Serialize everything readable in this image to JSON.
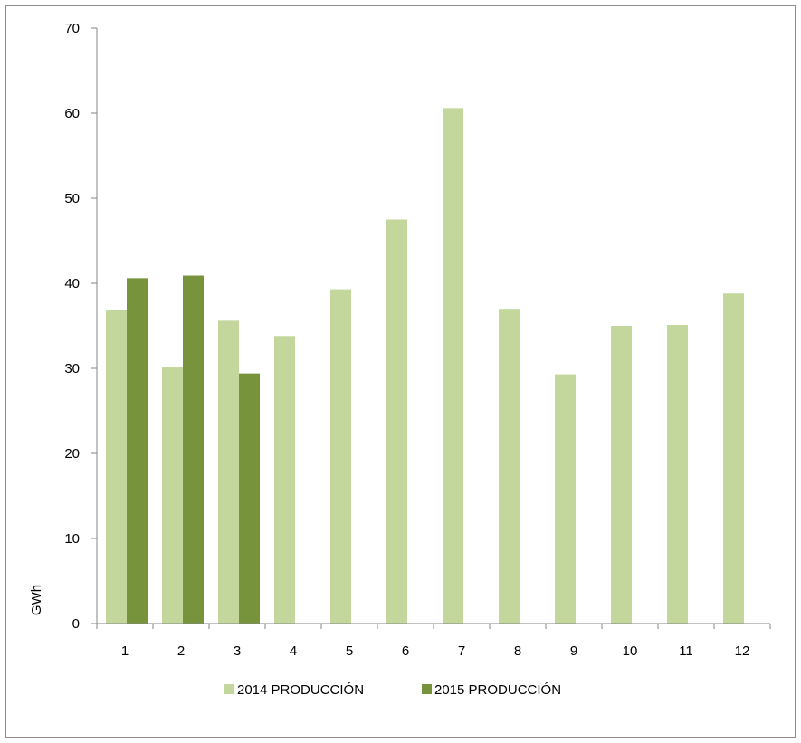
{
  "chart_data": {
    "type": "bar",
    "ylabel": "GWh",
    "xlabel": "",
    "ylim": [
      0,
      70
    ],
    "y_ticks": [
      0,
      10,
      20,
      30,
      40,
      50,
      60,
      70
    ],
    "grid": false,
    "legend_position": "bottom",
    "categories": [
      "1",
      "2",
      "3",
      "4",
      "5",
      "6",
      "7",
      "8",
      "9",
      "10",
      "11",
      "12"
    ],
    "series": [
      {
        "name": "2014 PRODUCCIÓN",
        "color": "#c3d69b",
        "values": [
          36.9,
          30.1,
          35.6,
          33.8,
          39.3,
          47.5,
          60.6,
          37.0,
          29.3,
          35.0,
          35.1,
          38.8
        ]
      },
      {
        "name": "2015 PRODUCCIÓN",
        "color": "#77933c",
        "values": [
          40.6,
          40.9,
          29.4,
          null,
          null,
          null,
          null,
          null,
          null,
          null,
          null,
          null
        ]
      }
    ]
  }
}
